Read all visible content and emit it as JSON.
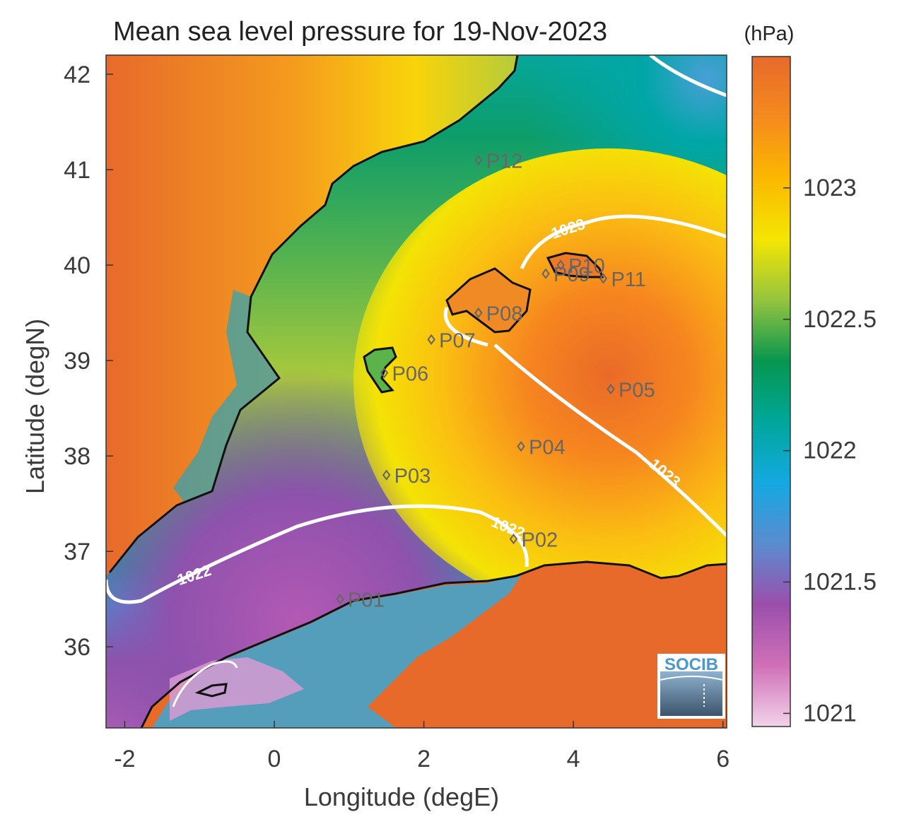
{
  "title": "Mean sea level pressure for 19-Nov-2023",
  "colorbar": {
    "unit": "(hPa)",
    "min": 1020.95,
    "max": 1023.5,
    "ticks": [
      1021,
      1021.5,
      1022,
      1022.5,
      1023
    ],
    "tick_labels": [
      "1021",
      "1021.5",
      "1022",
      "1022.5",
      "1023"
    ],
    "colors": [
      "#f2d3e9",
      "#d070b8",
      "#9a4fac",
      "#5a8cd0",
      "#14a8e2",
      "#00a79a",
      "#06964f",
      "#94c43e",
      "#f4e602",
      "#fbb800",
      "#f58a1e",
      "#e76a2b"
    ]
  },
  "axes": {
    "xlabel": "Longitude (degE)",
    "ylabel": "Latitude (degN)",
    "xlim": [
      -2.25,
      6.05
    ],
    "ylim": [
      35.15,
      42.2
    ],
    "xticks": [
      -2,
      0,
      2,
      4,
      6
    ],
    "xtick_labels": [
      "-2",
      "0",
      "2",
      "4",
      "6"
    ],
    "yticks": [
      36,
      37,
      38,
      39,
      40,
      41,
      42
    ],
    "ytick_labels": [
      "36",
      "37",
      "38",
      "39",
      "40",
      "41",
      "42"
    ]
  },
  "contour_labels": [
    {
      "text": "1023",
      "lon": 3.95,
      "lat": 40.33,
      "angle": -18
    },
    {
      "text": "1023",
      "lon": 5.18,
      "lat": 37.78,
      "angle": 40
    },
    {
      "text": "1022",
      "lon": 3.1,
      "lat": 37.2,
      "angle": 22
    },
    {
      "text": "1022",
      "lon": -1.05,
      "lat": 36.7,
      "angle": -18
    }
  ],
  "stations": [
    {
      "name": "P01",
      "lon": 0.88,
      "lat": 36.5
    },
    {
      "name": "P02",
      "lon": 3.2,
      "lat": 37.13
    },
    {
      "name": "P03",
      "lon": 1.5,
      "lat": 37.8
    },
    {
      "name": "P04",
      "lon": 3.3,
      "lat": 38.1
    },
    {
      "name": "P05",
      "lon": 4.5,
      "lat": 38.7
    },
    {
      "name": "P06",
      "lon": 1.47,
      "lat": 38.87
    },
    {
      "name": "P07",
      "lon": 2.1,
      "lat": 39.22
    },
    {
      "name": "P08",
      "lon": 2.73,
      "lat": 39.5
    },
    {
      "name": "P09",
      "lon": 3.63,
      "lat": 39.91
    },
    {
      "name": "P10",
      "lon": 3.83,
      "lat": 40.0
    },
    {
      "name": "P11",
      "lon": 4.4,
      "lat": 39.86
    },
    {
      "name": "P12",
      "lon": 2.73,
      "lat": 41.1
    }
  ],
  "logo": {
    "text": "SOCIB"
  }
}
